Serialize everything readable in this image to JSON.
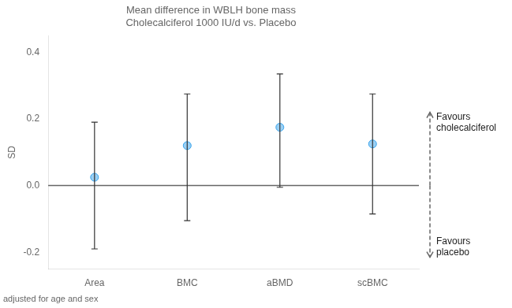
{
  "chart_data": {
    "type": "errorbar",
    "title": "Mean difference in WBLH bone mass\nCholecalciferol 1000 IU/d vs. Placebo",
    "ylabel": "SD",
    "categories": [
      "Area",
      "BMC",
      "aBMD",
      "scBMC"
    ],
    "values": [
      0.025,
      0.12,
      0.175,
      0.125
    ],
    "ci_lower": [
      -0.19,
      -0.105,
      -0.005,
      -0.085
    ],
    "ci_upper": [
      0.19,
      0.275,
      0.335,
      0.275
    ],
    "ylim": [
      -0.25,
      0.45
    ],
    "yticks": [
      -0.2,
      {
        "value": 0.0,
        "label": "0.0"
      },
      0.2,
      0.4
    ],
    "hline": 0.0,
    "annotations": [
      {
        "text": "Favours\ncholecalciferol",
        "y": 0.22
      },
      {
        "text": "Favours\nplacebo",
        "y": -0.215
      }
    ],
    "footnote": "adjusted for age and sex",
    "grid": false,
    "legend": false
  }
}
